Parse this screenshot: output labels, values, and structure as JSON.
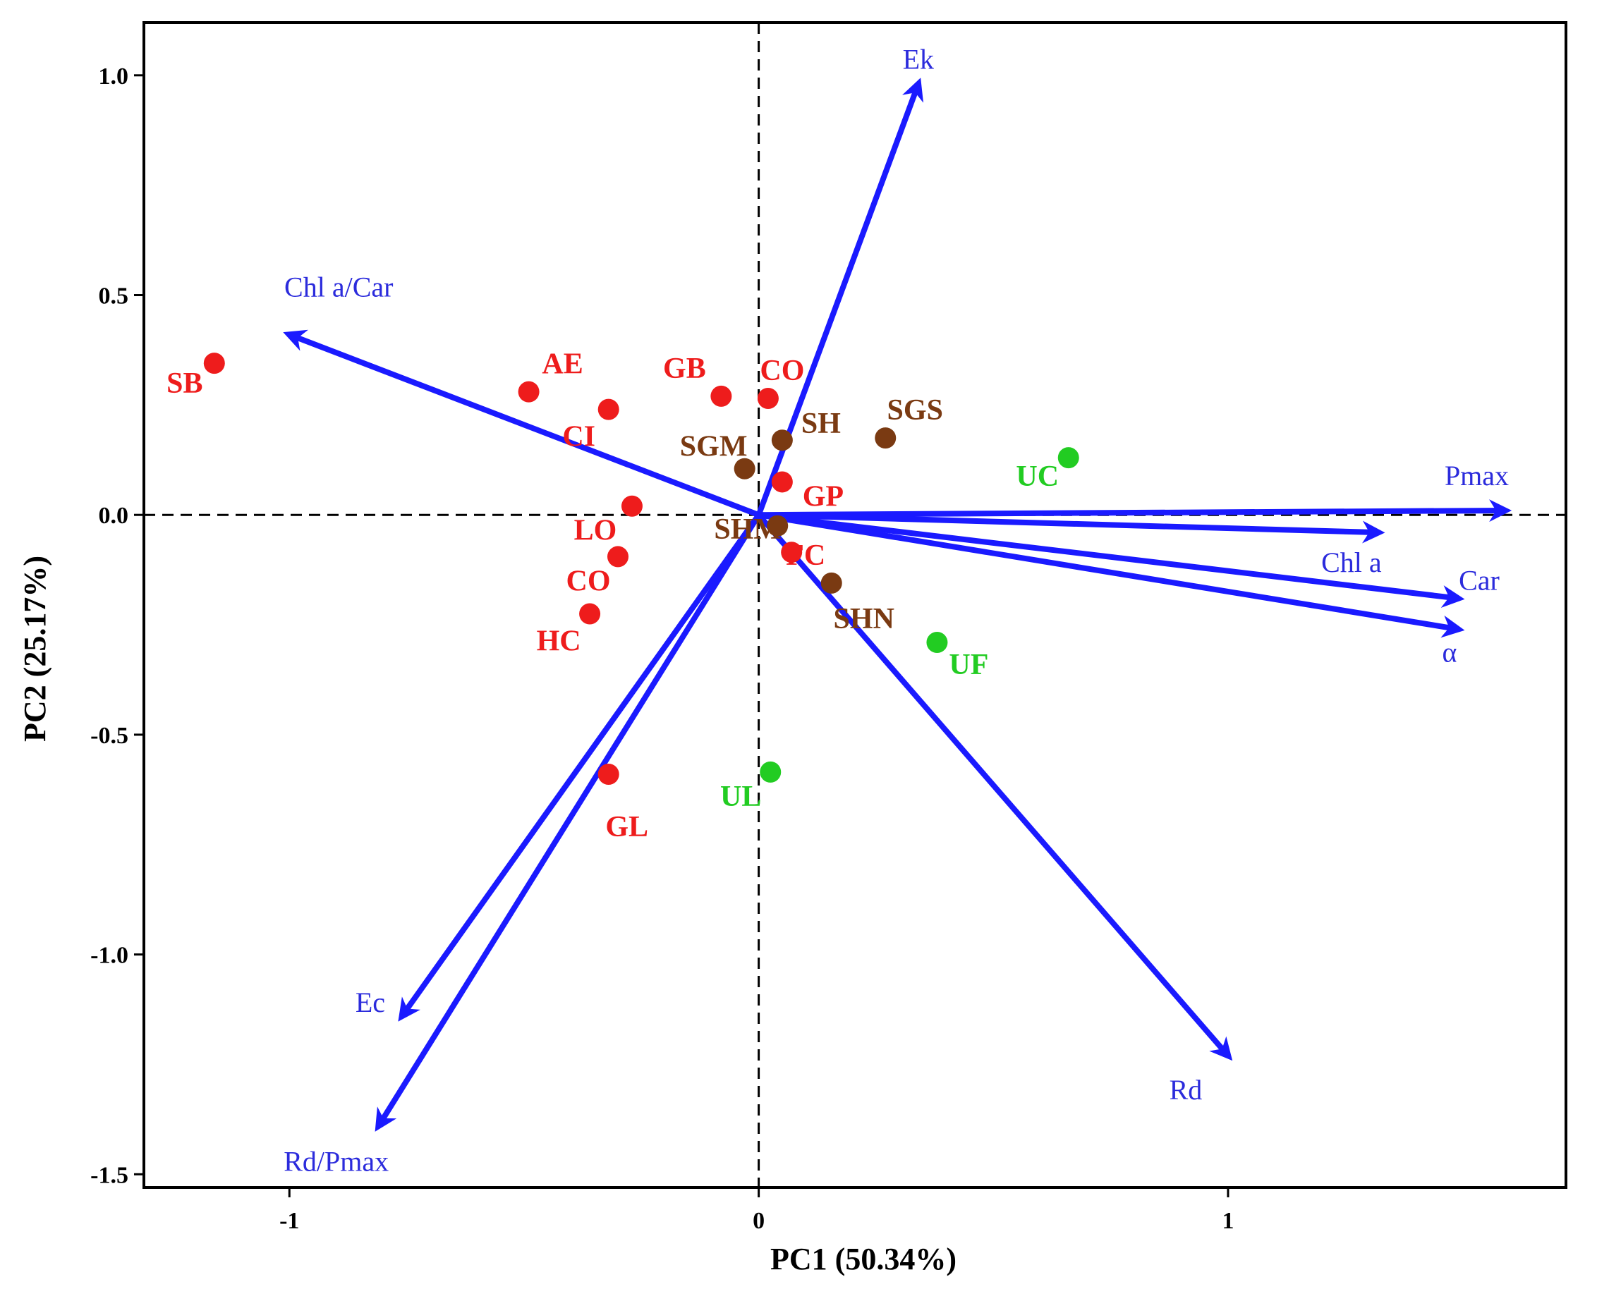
{
  "chart_data": {
    "type": "scatter",
    "subtype": "pca-biplot",
    "xlabel": "PC1 (50.34%)",
    "ylabel": "PC2 (25.17%)",
    "xlim": [
      -1.31,
      1.72
    ],
    "ylim": [
      -1.53,
      1.12
    ],
    "x_ticks": [
      -1,
      0,
      1
    ],
    "x_tick_labels": [
      "-1",
      "0",
      "1"
    ],
    "y_ticks": [
      -1.5,
      -1.0,
      -0.5,
      0.0,
      0.5,
      1.0
    ],
    "y_tick_labels": [
      "-1.5",
      "-1.0",
      "-0.5",
      "0.0",
      "0.5",
      "1.0"
    ],
    "reference_lines": {
      "x": 0,
      "y": 0,
      "style": "dashed"
    },
    "colors": {
      "arrow": "#1a1aff",
      "arrow_label": "#2b2bdc",
      "group_red": "#ee1c1c",
      "group_brown": "#7a3a12",
      "group_green": "#22cc22"
    },
    "arrows": [
      {
        "name": "Ek",
        "x": 0.34,
        "y": 0.98
      },
      {
        "name": "Chl a/Car",
        "x": -1.0,
        "y": 0.41
      },
      {
        "name": "Pmax",
        "x": 1.59,
        "y": 0.01
      },
      {
        "name": "Chl a",
        "x": 1.32,
        "y": -0.04
      },
      {
        "name": "Car",
        "x": 1.49,
        "y": -0.19
      },
      {
        "name": "α",
        "x": 1.49,
        "y": -0.26
      },
      {
        "name": "Rd",
        "x": 1.0,
        "y": -1.23
      },
      {
        "name": "Ec",
        "x": -0.76,
        "y": -1.14
      },
      {
        "name": "Rd/Pmax",
        "x": -0.81,
        "y": -1.39
      }
    ],
    "series": [
      {
        "name": "red group",
        "color": "#ee1c1c",
        "points": [
          {
            "label": "SB",
            "x": -1.16,
            "y": 0.345
          },
          {
            "label": "AE",
            "x": -0.49,
            "y": 0.28
          },
          {
            "label": "CI",
            "x": -0.32,
            "y": 0.24
          },
          {
            "label": "GB",
            "x": -0.08,
            "y": 0.27
          },
          {
            "label": "CO",
            "x": 0.02,
            "y": 0.265
          },
          {
            "label": "GP",
            "x": 0.05,
            "y": 0.075
          },
          {
            "label": "LO",
            "x": -0.27,
            "y": 0.02
          },
          {
            "label": "CO",
            "x": -0.3,
            "y": -0.095
          },
          {
            "label": "HC",
            "x": -0.36,
            "y": -0.225
          },
          {
            "label": "FC",
            "x": 0.07,
            "y": -0.085
          },
          {
            "label": "GL",
            "x": -0.32,
            "y": -0.59
          }
        ]
      },
      {
        "name": "brown group",
        "color": "#7a3a12",
        "points": [
          {
            "label": "SH",
            "x": 0.05,
            "y": 0.17
          },
          {
            "label": "SGS",
            "x": 0.27,
            "y": 0.175
          },
          {
            "label": "SGM",
            "x": -0.03,
            "y": 0.105
          },
          {
            "label": "SHM",
            "x": 0.04,
            "y": -0.025
          },
          {
            "label": "SHN",
            "x": 0.155,
            "y": -0.155
          }
        ]
      },
      {
        "name": "green group",
        "color": "#22cc22",
        "points": [
          {
            "label": "UC",
            "x": 0.66,
            "y": 0.13
          },
          {
            "label": "UF",
            "x": 0.38,
            "y": -0.29
          },
          {
            "label": "UL",
            "x": 0.025,
            "y": -0.585
          }
        ]
      }
    ]
  }
}
